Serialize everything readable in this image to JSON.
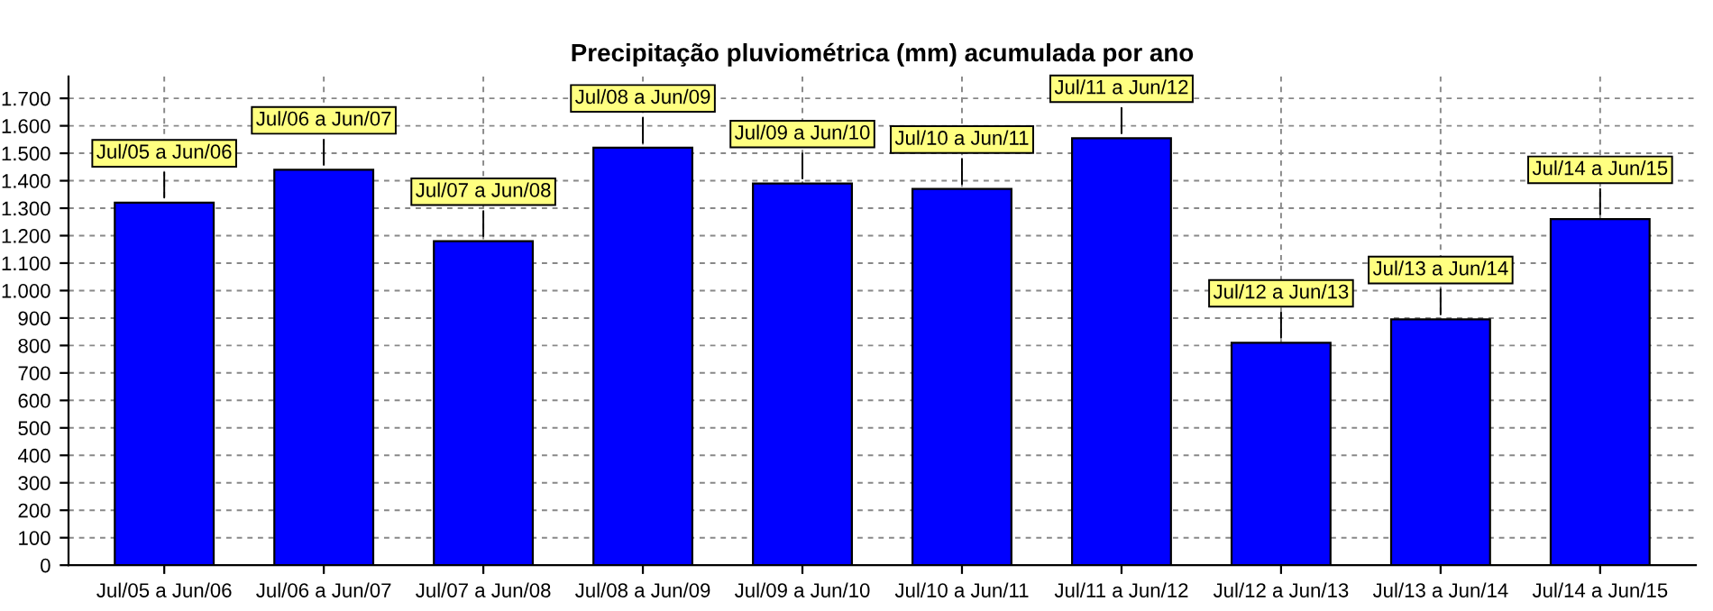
{
  "chart_data": {
    "type": "bar",
    "title": "Precipitação pluviométrica (mm) acumulada por ano",
    "categories": [
      "Jul/05 a Jun/06",
      "Jul/06 a Jun/07",
      "Jul/07 a Jun/08",
      "Jul/08 a Jun/09",
      "Jul/09 a Jun/10",
      "Jul/10 a Jun/11",
      "Jul/11 a Jun/12",
      "Jul/12 a Jun/13",
      "Jul/13 a Jun/14",
      "Jul/14 a Jun/15"
    ],
    "series": [
      {
        "color": "#0000ff",
        "values": [
          1320,
          1440,
          1180,
          1520,
          1390,
          1370,
          1555,
          810,
          895,
          1260
        ]
      }
    ],
    "ylim": [
      0,
      1780
    ],
    "yticks": [
      0,
      100,
      200,
      300,
      400,
      500,
      600,
      700,
      800,
      900,
      {
        "value": 1000,
        "label": "1.000"
      },
      {
        "value": 1100,
        "label": "1.100"
      },
      {
        "value": 1200,
        "label": "1.200"
      },
      {
        "value": 1300,
        "label": "1.300"
      },
      {
        "value": 1400,
        "label": "1.400"
      },
      {
        "value": 1500,
        "label": "1.500"
      },
      {
        "value": 1600,
        "label": "1.600"
      },
      {
        "value": 1700,
        "label": "1.700"
      }
    ],
    "grid": true,
    "annotations": [
      {
        "text": "Jul/05 a Jun/06",
        "x": "Jul/05 a Jun/06",
        "y": 1320
      },
      {
        "text": "Jul/06 a Jun/07",
        "x": "Jul/06 a Jun/07",
        "y": 1440
      },
      {
        "text": "Jul/07 a Jun/08",
        "x": "Jul/07 a Jun/08",
        "y": 1180
      },
      {
        "text": "Jul/08 a Jun/09",
        "x": "Jul/08 a Jun/09",
        "y": 1520
      },
      {
        "text": "Jul/09 a Jun/10",
        "x": "Jul/09 a Jun/10",
        "y": 1390
      },
      {
        "text": "Jul/10 a Jun/11",
        "x": "Jul/10 a Jun/11",
        "y": 1370
      },
      {
        "text": "Jul/11 a Jun/12",
        "x": "Jul/11 a Jun/12",
        "y": 1555
      },
      {
        "text": "Jul/12 a Jun/13",
        "x": "Jul/12 a Jun/13",
        "y": 810
      },
      {
        "text": "Jul/13 a Jun/14",
        "x": "Jul/13 a Jun/14",
        "y": 895
      },
      {
        "text": "Jul/14 a Jun/15",
        "x": "Jul/14 a Jun/15",
        "y": 1260
      }
    ]
  }
}
